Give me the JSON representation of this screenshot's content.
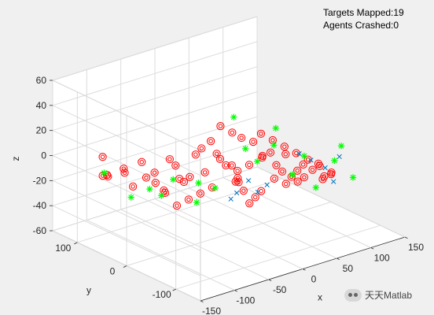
{
  "status": {
    "line1": "Targets Mapped:19",
    "line2": "Agents Crashed:0"
  },
  "watermark": {
    "text": "天天Matlab",
    "icon": "wechat-icon"
  },
  "chart_data": {
    "type": "scatter",
    "projection": "3d",
    "grid": true,
    "background": "#ffffff",
    "axes": {
      "x": {
        "label": "x",
        "range": [
          -150,
          150
        ],
        "ticks": [
          -150,
          -100,
          -50,
          0,
          50,
          100,
          150
        ]
      },
      "y": {
        "label": "y",
        "range": [
          -150,
          150
        ],
        "ticks": [
          100,
          0,
          -100
        ]
      },
      "z": {
        "label": "z",
        "range": [
          -60,
          60
        ],
        "ticks": [
          -60,
          -40,
          -20,
          0,
          20,
          40,
          60
        ]
      }
    },
    "series": [
      {
        "marker": "bullseye",
        "color": "#ff0000",
        "points": [
          [
            -120,
            90,
            5
          ],
          [
            -120,
            90,
            -10
          ],
          [
            -110,
            95,
            -12
          ],
          [
            -105,
            100,
            -15
          ],
          [
            -100,
            75,
            -5
          ],
          [
            -95,
            80,
            -10
          ],
          [
            -90,
            70,
            -20
          ],
          [
            -88,
            55,
            2
          ],
          [
            -85,
            50,
            -10
          ],
          [
            -80,
            40,
            -5
          ],
          [
            -75,
            45,
            -15
          ],
          [
            -70,
            35,
            -20
          ],
          [
            -65,
            30,
            5
          ],
          [
            -60,
            25,
            0
          ],
          [
            -58,
            20,
            -10
          ],
          [
            -55,
            15,
            -12
          ],
          [
            -50,
            10,
            -8
          ],
          [
            -45,
            5,
            10
          ],
          [
            -40,
            0,
            15
          ],
          [
            -35,
            0,
            -5
          ],
          [
            -30,
            -5,
            20
          ],
          [
            -25,
            -10,
            10
          ],
          [
            -20,
            -10,
            5
          ],
          [
            -15,
            -15,
            0
          ],
          [
            -10,
            -20,
            0
          ],
          [
            -5,
            -25,
            -10
          ],
          [
            0,
            -20,
            -15
          ],
          [
            0,
            -30,
            -20
          ],
          [
            5,
            -35,
            -30
          ],
          [
            10,
            -40,
            -25
          ],
          [
            15,
            -45,
            -20
          ],
          [
            20,
            -40,
            5
          ],
          [
            25,
            -50,
            10
          ],
          [
            30,
            -55,
            0
          ],
          [
            35,
            -60,
            -5
          ],
          [
            40,
            -60,
            8
          ],
          [
            45,
            -65,
            -10
          ],
          [
            50,
            -70,
            -5
          ],
          [
            55,
            -75,
            0
          ],
          [
            60,
            -70,
            -12
          ],
          [
            65,
            -80,
            -5
          ],
          [
            70,
            -85,
            0
          ],
          [
            75,
            -90,
            -10
          ],
          [
            80,
            -80,
            -15
          ],
          [
            85,
            -90,
            -10
          ],
          [
            -10,
            20,
            -25
          ],
          [
            -20,
            30,
            -30
          ],
          [
            -30,
            40,
            -35
          ],
          [
            -40,
            50,
            -40
          ],
          [
            -50,
            60,
            -30
          ],
          [
            10,
            0,
            -20
          ],
          [
            20,
            10,
            -15
          ],
          [
            30,
            0,
            -10
          ],
          [
            40,
            -10,
            15
          ],
          [
            50,
            -20,
            10
          ],
          [
            60,
            -30,
            5
          ],
          [
            70,
            -40,
            0
          ],
          [
            80,
            -50,
            -5
          ],
          [
            90,
            -60,
            -10
          ],
          [
            100,
            -70,
            -15
          ],
          [
            -5,
            10,
            25
          ],
          [
            5,
            0,
            20
          ],
          [
            15,
            -5,
            15
          ],
          [
            25,
            -15,
            12
          ],
          [
            35,
            -20,
            0
          ],
          [
            45,
            -30,
            -18
          ],
          [
            55,
            -40,
            -22
          ],
          [
            65,
            -50,
            -20
          ]
        ]
      },
      {
        "marker": "asterisk",
        "color": "#00ff00",
        "points": [
          [
            -125,
            80,
            -5
          ],
          [
            -100,
            60,
            -25
          ],
          [
            -80,
            50,
            -20
          ],
          [
            -60,
            30,
            -12
          ],
          [
            -40,
            10,
            -30
          ],
          [
            -20,
            0,
            -20
          ],
          [
            0,
            -10,
            35
          ],
          [
            10,
            -20,
            10
          ],
          [
            20,
            -30,
            0
          ],
          [
            30,
            -50,
            15
          ],
          [
            50,
            -60,
            -10
          ],
          [
            70,
            -80,
            -20
          ],
          [
            90,
            -90,
            0
          ],
          [
            110,
            -100,
            -15
          ],
          [
            -70,
            40,
            -25
          ],
          [
            -30,
            20,
            -18
          ],
          [
            40,
            -40,
            25
          ],
          [
            60,
            -70,
            5
          ],
          [
            100,
            -90,
            10
          ]
        ]
      },
      {
        "marker": "x",
        "color": "#0072bd",
        "points": [
          [
            -10,
            -30,
            -20
          ],
          [
            0,
            -40,
            -10
          ],
          [
            10,
            -45,
            -20
          ],
          [
            20,
            -50,
            -15
          ],
          [
            60,
            -60,
            5
          ],
          [
            70,
            -70,
            0
          ],
          [
            80,
            -85,
            -5
          ],
          [
            85,
            -95,
            -15
          ],
          [
            90,
            -100,
            5
          ],
          [
            -15,
            -25,
            -25
          ]
        ]
      }
    ]
  }
}
